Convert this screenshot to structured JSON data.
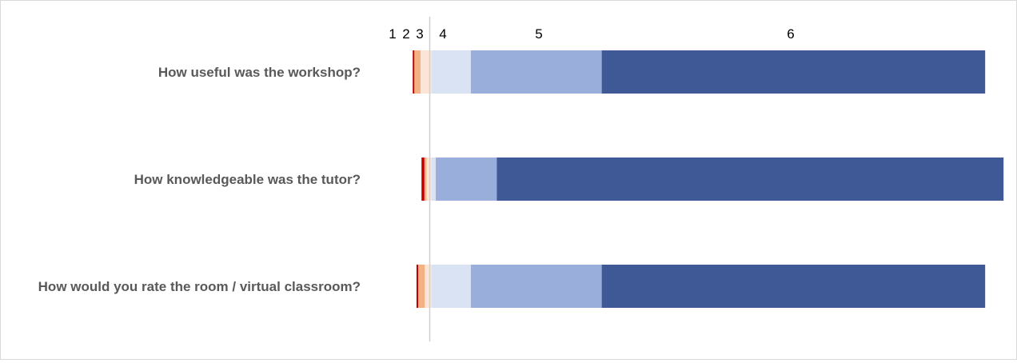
{
  "chart_data": {
    "type": "bar",
    "orientation": "horizontal",
    "stacked": "diverging",
    "categories": [
      "How useful was the workshop?",
      "How knowledgeable was the tutor?",
      "How would you rate the room / virtual classroom?"
    ],
    "legend_position": "top",
    "series": [
      {
        "name": "1",
        "color": "#c00000",
        "values": [
          0.4,
          0.7,
          0.4
        ]
      },
      {
        "name": "2",
        "color": "#f4b183",
        "values": [
          1.5,
          0.5,
          1.6
        ]
      },
      {
        "name": "3",
        "color": "#fbe5d6",
        "values": [
          2.6,
          1.2,
          1.6
        ]
      },
      {
        "name": "4",
        "color": "#dae3f3",
        "values": [
          9.4,
          1.0,
          9.4
        ]
      },
      {
        "name": "5",
        "color": "#9aaedb",
        "values": [
          31.3,
          14.6,
          31.3
        ]
      },
      {
        "name": "6",
        "color": "#3f5896",
        "values": [
          91.7,
          121.2,
          91.7
        ]
      }
    ],
    "xlim": [
      -5.5,
      136
    ],
    "grid": false
  }
}
